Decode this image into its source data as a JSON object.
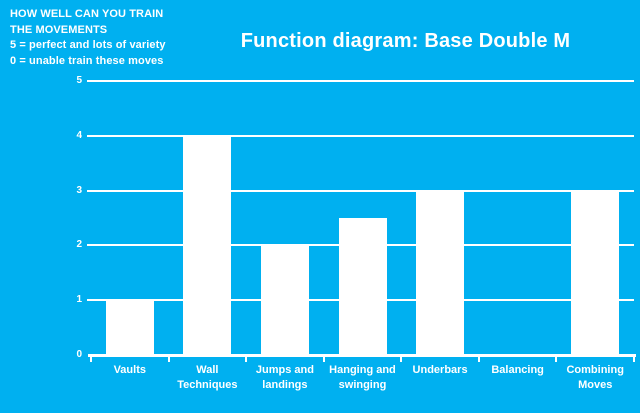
{
  "annotation": {
    "lines": [
      "HOW WELL CAN YOU TRAIN",
      "THE MOVEMENTS",
      "5 = perfect and lots of variety",
      "0 = unable train these moves"
    ]
  },
  "chart": {
    "title": "Function diagram: Base Double M"
  },
  "chart_data": {
    "type": "bar",
    "title": "Function diagram: Base Double M",
    "categories": [
      "Vaults",
      "Wall\nTechniques",
      "Jumps and\nlandings",
      "Hanging and\nswinging",
      "Underbars",
      "Balancing",
      "Combining\nMoves"
    ],
    "values": [
      1,
      4,
      2,
      2.5,
      3,
      0,
      3
    ],
    "xlabel": "",
    "ylabel": "",
    "ylim": [
      0,
      5
    ],
    "yticks": [
      0,
      1,
      2,
      3,
      4,
      5
    ],
    "grid": true,
    "legend": "none",
    "annotation": "HOW WELL CAN YOU TRAIN THE MOVEMENTS. 5 = perfect and lots of variety. 0 = unable train these moves",
    "colors": {
      "background": "#00b0f0",
      "bar": "#ffffff",
      "text": "#ffffff",
      "gridline": "#ffffff"
    }
  }
}
